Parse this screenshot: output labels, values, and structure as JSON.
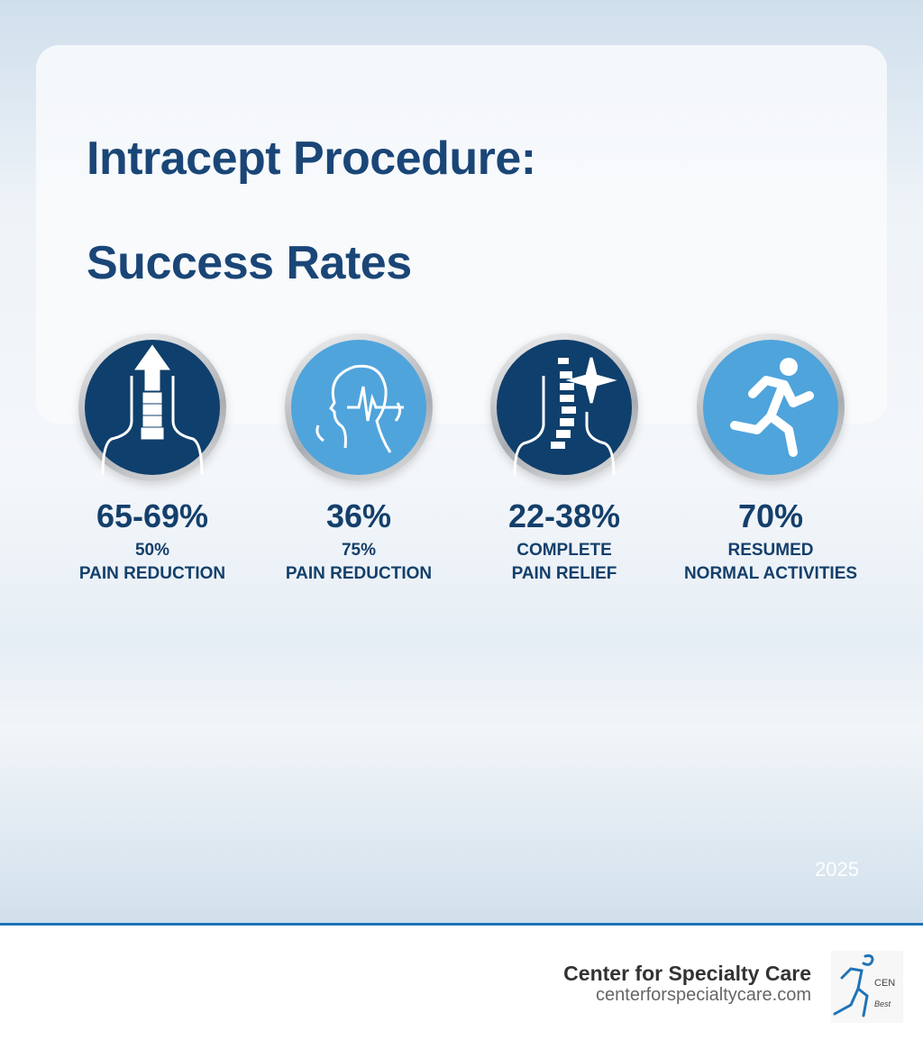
{
  "title": {
    "line1": "Intracept Procedure:",
    "line2": "Success Rates"
  },
  "stats": [
    {
      "value": "65-69%",
      "label1": "50%",
      "label2": "PAIN REDUCTION",
      "icon": "spine-arrow-up-icon",
      "color": "#0f3f6c"
    },
    {
      "value": "36%",
      "label1": "75%",
      "label2": "PAIN REDUCTION",
      "icon": "head-pulse-icon",
      "color": "#4fa4dc"
    },
    {
      "value": "22-38%",
      "label1": "COMPLETE",
      "label2": "PAIN RELIEF",
      "icon": "spine-sparkle-icon",
      "color": "#0f3f6c"
    },
    {
      "value": "70%",
      "label1": "RESUMED",
      "label2": "NORMAL ACTIVITIES",
      "icon": "running-person-icon",
      "color": "#4fa4dc"
    }
  ],
  "year": "2025",
  "footer": {
    "name": "Center for Specialty Care",
    "url": "centerforspecialtycare.com",
    "logo_text": "CEN",
    "logo_tagline": "Best"
  }
}
